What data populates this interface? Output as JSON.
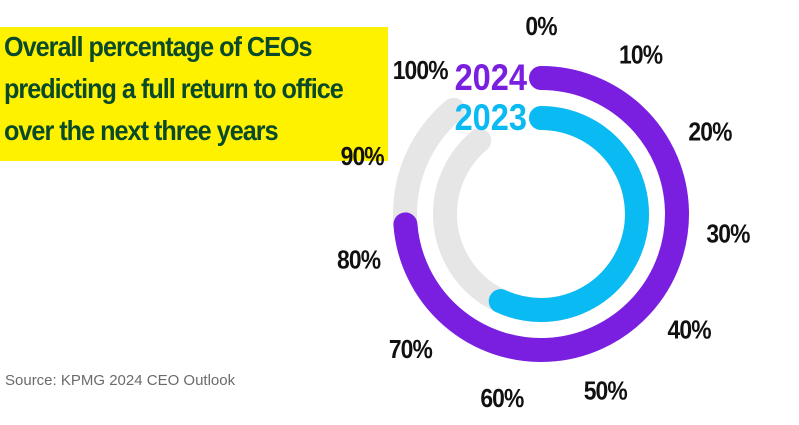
{
  "title_lines": [
    "Overall percentage of CEOs",
    "predicting a full return to office",
    "over the next three years"
  ],
  "source": "Source: KPMG 2024 CEO Outlook",
  "colors": {
    "title_bg": "#fff200",
    "title_text": "#0a4a2a",
    "series_2024": "#7a1fe0",
    "series_2023": "#0abaf2",
    "track": "#e6e6e6",
    "tick_text": "#111111"
  },
  "chart_data": {
    "type": "radial-bar",
    "title": "Overall percentage of CEOs predicting a full return to office over the next three years",
    "scale_ticks": [
      "0%",
      "10%",
      "20%",
      "30%",
      "40%",
      "50%",
      "60%",
      "70%",
      "80%",
      "90%",
      "100%"
    ],
    "range": [
      0,
      100
    ],
    "series": [
      {
        "name": "2024",
        "value": 83
      },
      {
        "name": "2023",
        "value": 64
      }
    ]
  }
}
